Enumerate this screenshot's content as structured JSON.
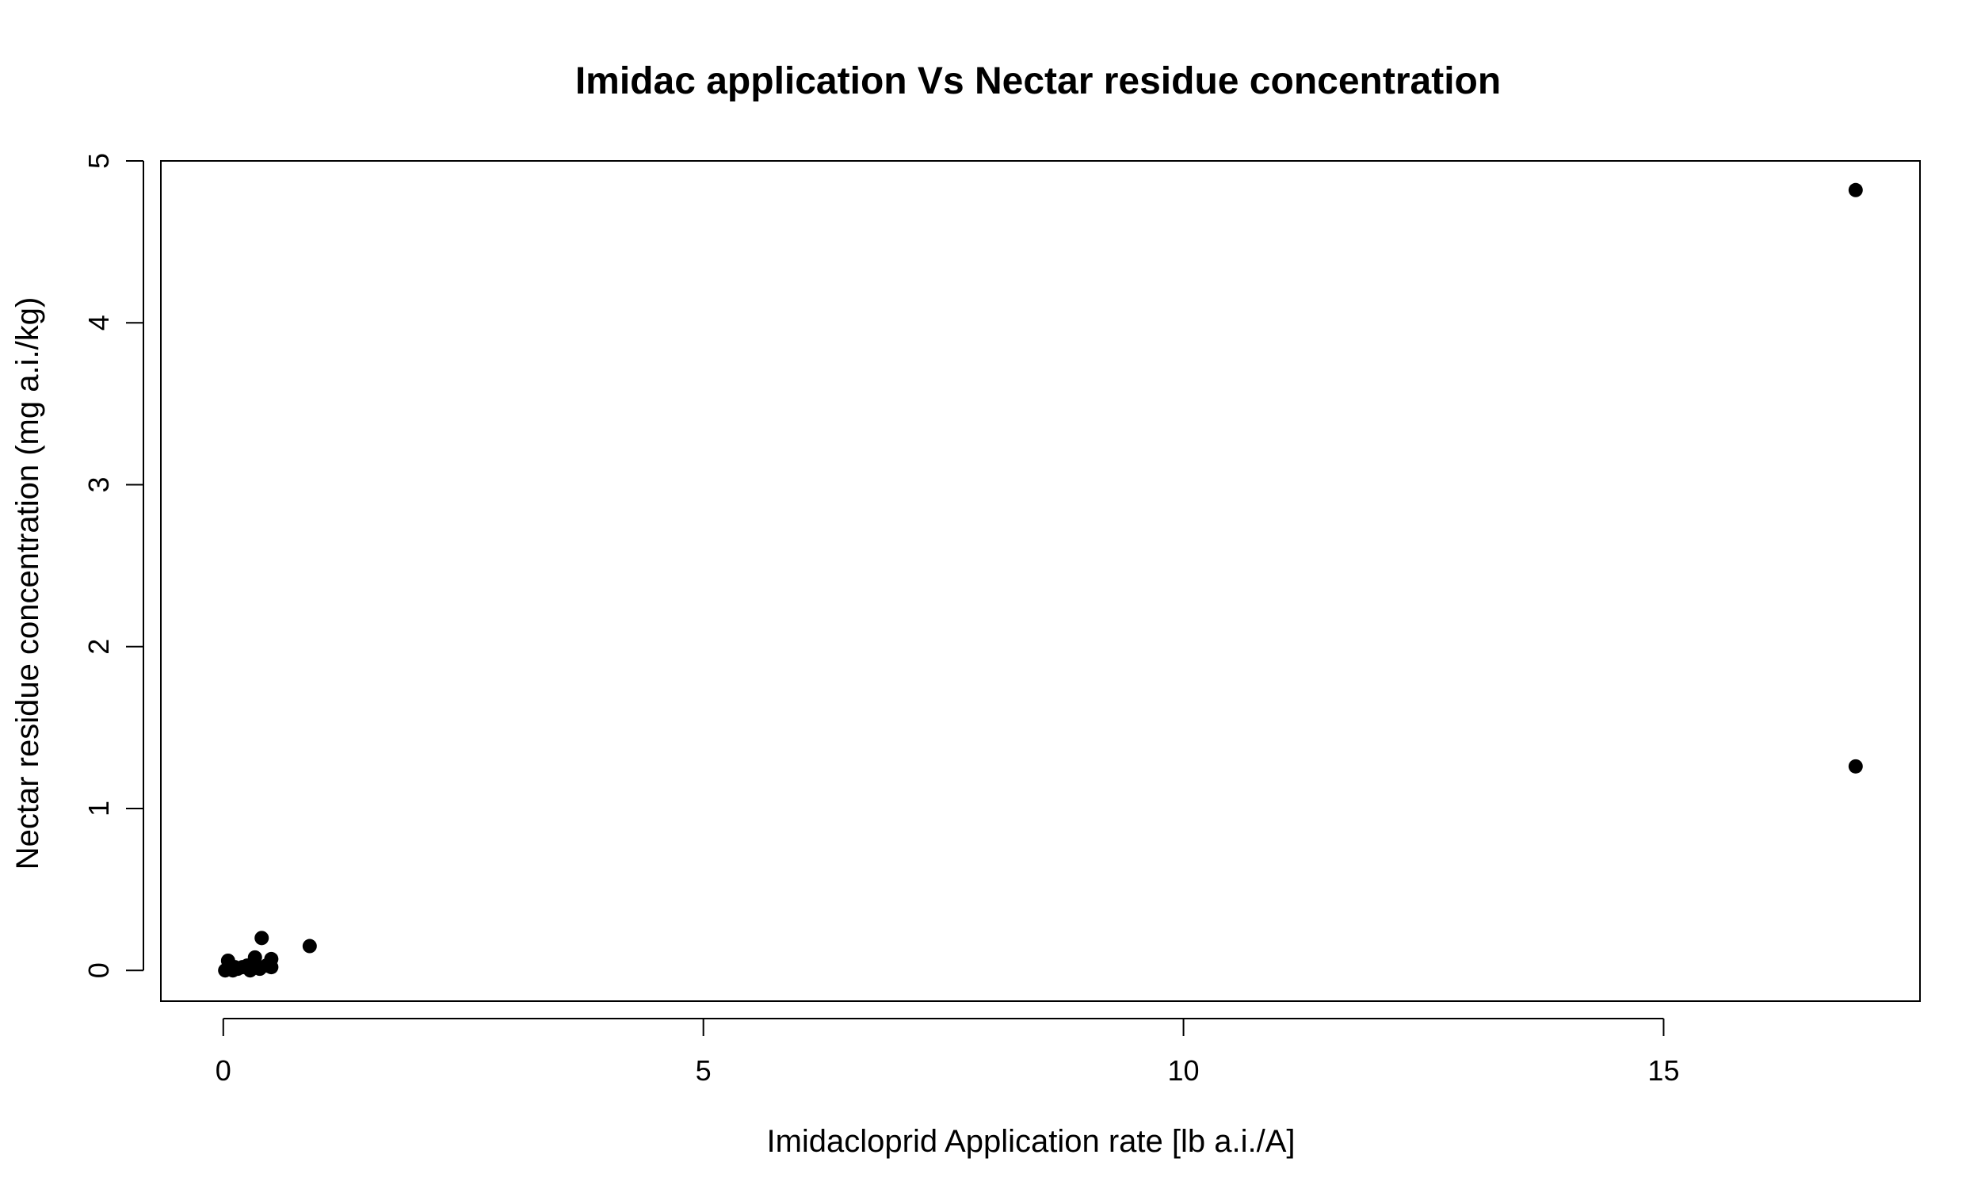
{
  "chart_data": {
    "type": "scatter",
    "title": "Imidac application Vs Nectar residue concentration",
    "xlabel": "Imidacloprid Application rate [lb a.i./A]",
    "ylabel": "Nectar residue concentration  (mg a.i./kg)",
    "xlim": [
      -0.65,
      17.67
    ],
    "ylim": [
      -0.19,
      5.0
    ],
    "xticks": [
      0,
      5,
      10,
      15
    ],
    "yticks": [
      0,
      1,
      2,
      3,
      4,
      5
    ],
    "grid": false,
    "legend": "none",
    "marker_color": "#000000",
    "series": [
      {
        "x": [
          0.02,
          0.05,
          0.08,
          0.1,
          0.12,
          0.15,
          0.2,
          0.25,
          0.28,
          0.3,
          0.33,
          0.35,
          0.38,
          0.4,
          0.45,
          0.5,
          0.5,
          0.9,
          17.0,
          17.0
        ],
        "y": [
          0.0,
          0.06,
          0.01,
          0.0,
          0.02,
          0.01,
          0.02,
          0.03,
          0.0,
          0.01,
          0.08,
          0.02,
          0.01,
          0.2,
          0.03,
          0.07,
          0.02,
          0.15,
          4.82,
          1.26
        ]
      }
    ]
  }
}
